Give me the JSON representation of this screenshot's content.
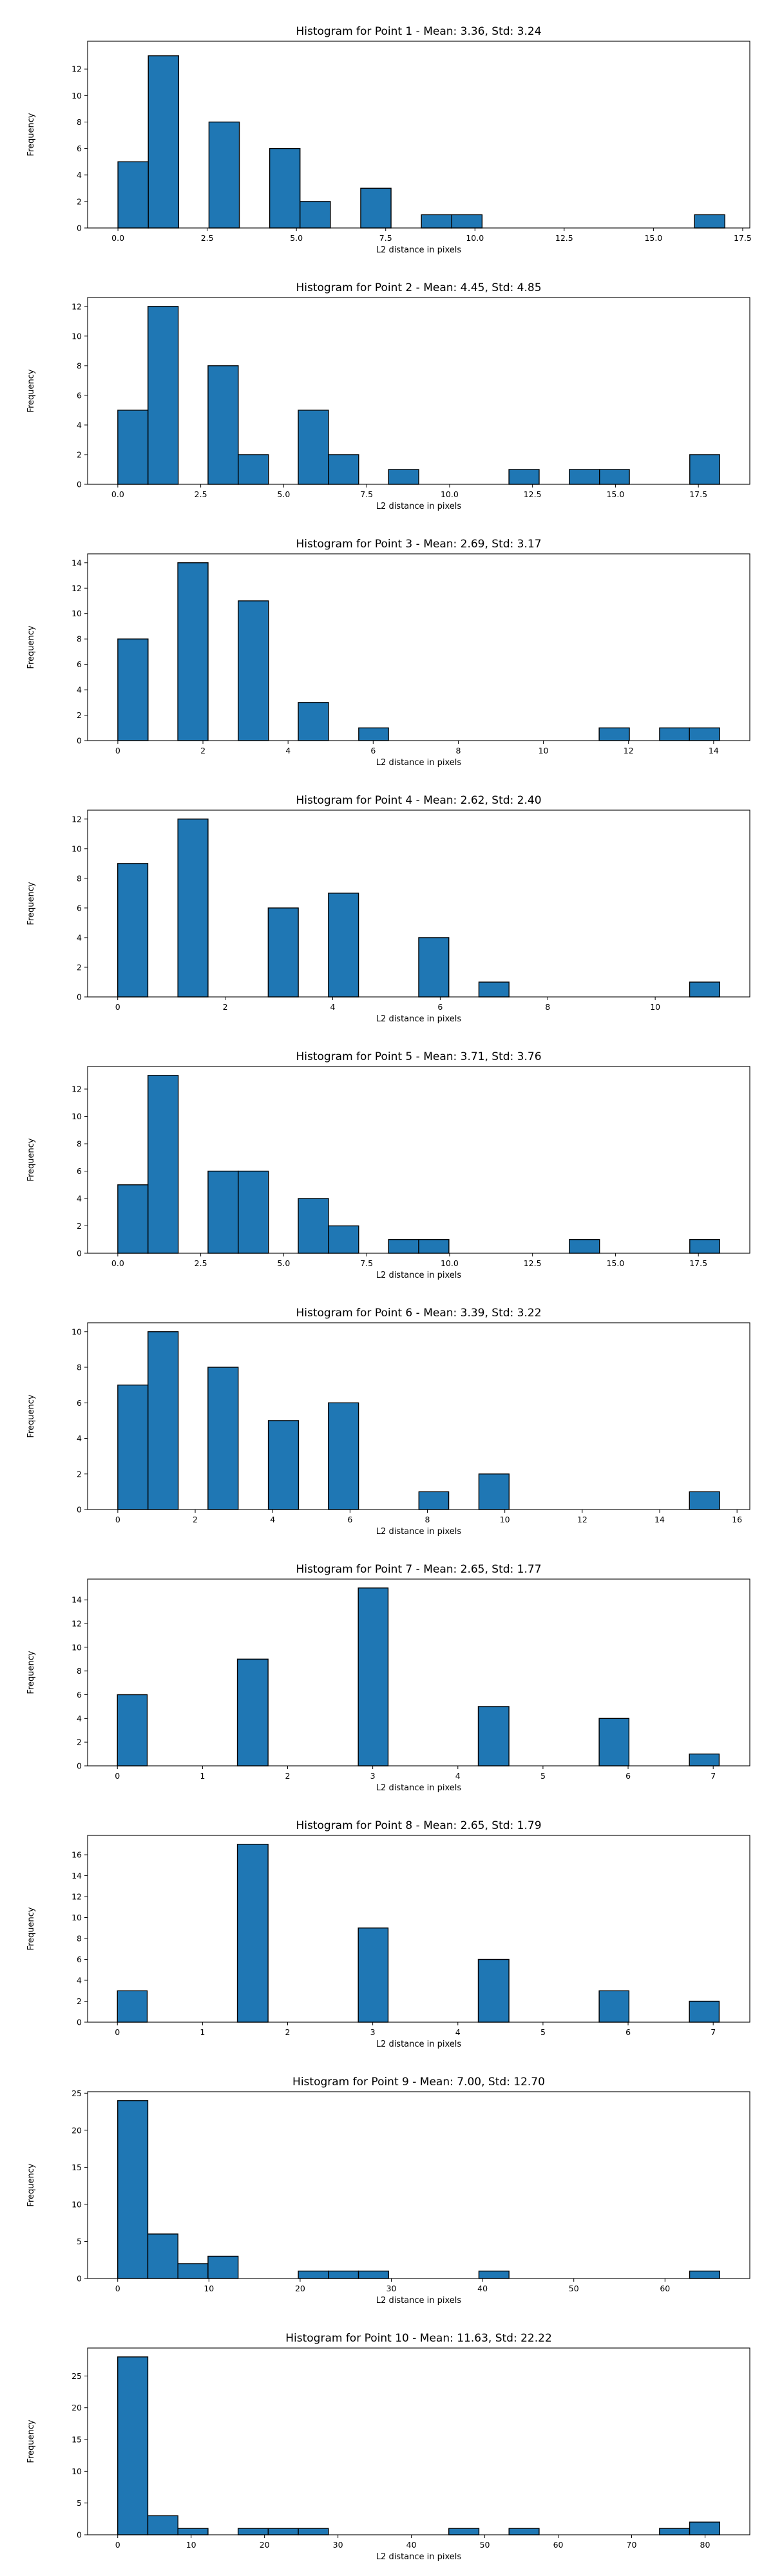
{
  "chart_data": [
    {
      "type": "bar",
      "title": "Histogram for Point 1 - Mean: 3.36, Std: 3.24",
      "xlabel": "L2 distance in pixels",
      "ylabel": "Frequency",
      "xlim": [
        -0.85,
        17.7
      ],
      "ylim": [
        0,
        14.1
      ],
      "xticks": [
        0,
        2.5,
        5,
        7.5,
        10,
        12.5,
        15,
        17.5
      ],
      "xtick_labels": [
        "0.0",
        "2.5",
        "5.0",
        "7.5",
        "10.0",
        "12.5",
        "15.0",
        "17.5"
      ],
      "yticks": [
        0,
        2,
        4,
        6,
        8,
        10,
        12
      ],
      "grid": false,
      "bins": [
        [
          0,
          0.85,
          5
        ],
        [
          0.85,
          1.7,
          13
        ],
        [
          2.55,
          3.4,
          8
        ],
        [
          4.25,
          5.1,
          6
        ],
        [
          5.1,
          5.95,
          2
        ],
        [
          6.8,
          7.65,
          3
        ],
        [
          8.5,
          9.35,
          1
        ],
        [
          9.35,
          10.2,
          1
        ],
        [
          16.15,
          17.0,
          1
        ]
      ]
    },
    {
      "type": "bar",
      "title": "Histogram for Point 2 - Mean: 4.45, Std: 4.85",
      "xlabel": "L2 distance in pixels",
      "ylabel": "Frequency",
      "xlim": [
        -0.91,
        19.05
      ],
      "ylim": [
        0,
        12.6
      ],
      "xticks": [
        0,
        2.5,
        5,
        7.5,
        10,
        12.5,
        15,
        17.5
      ],
      "xtick_labels": [
        "0.0",
        "2.5",
        "5.0",
        "7.5",
        "10.0",
        "12.5",
        "15.0",
        "17.5"
      ],
      "yticks": [
        0,
        2,
        4,
        6,
        8,
        10,
        12
      ],
      "grid": false,
      "bins": [
        [
          0,
          0.91,
          5
        ],
        [
          0.91,
          1.82,
          12
        ],
        [
          2.72,
          3.63,
          8
        ],
        [
          3.63,
          4.54,
          2
        ],
        [
          5.44,
          6.35,
          5
        ],
        [
          6.35,
          7.26,
          2
        ],
        [
          8.16,
          9.07,
          1
        ],
        [
          11.79,
          12.7,
          1
        ],
        [
          13.61,
          14.52,
          1
        ],
        [
          14.52,
          15.42,
          1
        ],
        [
          17.24,
          18.14,
          2
        ]
      ]
    },
    {
      "type": "bar",
      "title": "Histogram for Point 3 - Mean: 2.69, Std: 3.17",
      "xlabel": "L2 distance in pixels",
      "ylabel": "Frequency",
      "xlim": [
        -0.71,
        14.85
      ],
      "ylim": [
        0,
        14.7
      ],
      "xticks": [
        0,
        2,
        4,
        6,
        8,
        10,
        12,
        14
      ],
      "xtick_labels": [
        "0",
        "2",
        "4",
        "6",
        "8",
        "10",
        "12",
        "14"
      ],
      "yticks": [
        0,
        2,
        4,
        6,
        8,
        10,
        12,
        14
      ],
      "grid": false,
      "bins": [
        [
          0,
          0.71,
          8
        ],
        [
          1.41,
          2.12,
          14
        ],
        [
          2.83,
          3.54,
          11
        ],
        [
          4.24,
          4.95,
          3
        ],
        [
          5.66,
          6.36,
          1
        ],
        [
          11.31,
          12.02,
          1
        ],
        [
          12.73,
          13.43,
          1
        ],
        [
          13.43,
          14.14,
          1
        ]
      ]
    },
    {
      "type": "bar",
      "title": "Histogram for Point 4 - Mean: 2.62, Std: 2.40",
      "xlabel": "L2 distance in pixels",
      "ylabel": "Frequency",
      "xlim": [
        -0.56,
        11.76
      ],
      "ylim": [
        0,
        12.6
      ],
      "xticks": [
        0,
        2,
        4,
        6,
        8,
        10
      ],
      "xtick_labels": [
        "0",
        "2",
        "4",
        "6",
        "8",
        "10"
      ],
      "yticks": [
        0,
        2,
        4,
        6,
        8,
        10,
        12
      ],
      "grid": false,
      "bins": [
        [
          0,
          0.56,
          9
        ],
        [
          1.12,
          1.68,
          12
        ],
        [
          2.8,
          3.36,
          6
        ],
        [
          3.92,
          4.48,
          7
        ],
        [
          5.6,
          6.16,
          4
        ],
        [
          6.72,
          7.28,
          1
        ],
        [
          10.64,
          11.2,
          1
        ]
      ]
    },
    {
      "type": "bar",
      "title": "Histogram for Point 5 - Mean: 3.71, Std: 3.76",
      "xlabel": "L2 distance in pixels",
      "ylabel": "Frequency",
      "xlim": [
        -0.91,
        19.05
      ],
      "ylim": [
        0,
        13.65
      ],
      "xticks": [
        0,
        2.5,
        5,
        7.5,
        10,
        12.5,
        15,
        17.5
      ],
      "xtick_labels": [
        "0.0",
        "2.5",
        "5.0",
        "7.5",
        "10.0",
        "12.5",
        "15.0",
        "17.5"
      ],
      "yticks": [
        0,
        2,
        4,
        6,
        8,
        10,
        12
      ],
      "grid": false,
      "bins": [
        [
          0,
          0.91,
          5
        ],
        [
          0.91,
          1.82,
          13
        ],
        [
          2.72,
          3.63,
          6
        ],
        [
          3.63,
          4.54,
          6
        ],
        [
          5.44,
          6.35,
          4
        ],
        [
          6.35,
          7.26,
          2
        ],
        [
          8.16,
          9.07,
          1
        ],
        [
          9.07,
          9.98,
          1
        ],
        [
          13.61,
          14.52,
          1
        ],
        [
          17.24,
          18.14,
          1
        ]
      ]
    },
    {
      "type": "bar",
      "title": "Histogram for Point 6 - Mean: 3.39, Std: 3.22",
      "xlabel": "L2 distance in pixels",
      "ylabel": "Frequency",
      "xlim": [
        -0.78,
        16.33
      ],
      "ylim": [
        0,
        10.5
      ],
      "xticks": [
        0,
        2,
        4,
        6,
        8,
        10,
        12,
        14,
        16
      ],
      "xtick_labels": [
        "0",
        "2",
        "4",
        "6",
        "8",
        "10",
        "12",
        "14",
        "16"
      ],
      "yticks": [
        0,
        2,
        4,
        6,
        8,
        10
      ],
      "grid": false,
      "bins": [
        [
          0,
          0.78,
          7
        ],
        [
          0.78,
          1.56,
          10
        ],
        [
          2.33,
          3.11,
          8
        ],
        [
          3.89,
          4.67,
          5
        ],
        [
          5.44,
          6.22,
          6
        ],
        [
          7.78,
          8.55,
          1
        ],
        [
          9.33,
          10.11,
          2
        ],
        [
          14.77,
          15.55,
          1
        ]
      ]
    },
    {
      "type": "bar",
      "title": "Histogram for Point 7 - Mean: 2.65, Std: 1.77",
      "xlabel": "L2 distance in pixels",
      "ylabel": "Frequency",
      "xlim": [
        -0.35,
        7.43
      ],
      "ylim": [
        0,
        15.75
      ],
      "xticks": [
        0,
        1,
        2,
        3,
        4,
        5,
        6,
        7
      ],
      "xtick_labels": [
        "0",
        "1",
        "2",
        "3",
        "4",
        "5",
        "6",
        "7"
      ],
      "yticks": [
        0,
        2,
        4,
        6,
        8,
        10,
        12,
        14
      ],
      "grid": false,
      "bins": [
        [
          0,
          0.35,
          6
        ],
        [
          1.41,
          1.77,
          9
        ],
        [
          2.83,
          3.18,
          15
        ],
        [
          4.24,
          4.6,
          5
        ],
        [
          5.66,
          6.01,
          4
        ],
        [
          6.72,
          7.07,
          1
        ]
      ]
    },
    {
      "type": "bar",
      "title": "Histogram for Point 8 - Mean: 2.65, Std: 1.79",
      "xlabel": "L2 distance in pixels",
      "ylabel": "Frequency",
      "xlim": [
        -0.35,
        7.43
      ],
      "ylim": [
        0,
        17.85
      ],
      "xticks": [
        0,
        1,
        2,
        3,
        4,
        5,
        6,
        7
      ],
      "xtick_labels": [
        "0",
        "1",
        "2",
        "3",
        "4",
        "5",
        "6",
        "7"
      ],
      "yticks": [
        0,
        2,
        4,
        6,
        8,
        10,
        12,
        14,
        16
      ],
      "grid": false,
      "bins": [
        [
          0,
          0.35,
          3
        ],
        [
          1.41,
          1.77,
          17
        ],
        [
          2.83,
          3.18,
          9
        ],
        [
          4.24,
          4.6,
          6
        ],
        [
          5.66,
          6.01,
          3
        ],
        [
          6.72,
          7.07,
          2
        ]
      ]
    },
    {
      "type": "bar",
      "title": "Histogram for Point 9 - Mean: 7.00, Std: 12.70",
      "xlabel": "L2 distance in pixels",
      "ylabel": "Frequency",
      "xlim": [
        -3.3,
        69.3
      ],
      "ylim": [
        0,
        25.2
      ],
      "xticks": [
        0,
        10,
        20,
        30,
        40,
        50,
        60
      ],
      "xtick_labels": [
        "0",
        "10",
        "20",
        "30",
        "40",
        "50",
        "60"
      ],
      "yticks": [
        0,
        5,
        10,
        15,
        20,
        25
      ],
      "grid": false,
      "bins": [
        [
          0,
          3.3,
          24
        ],
        [
          3.3,
          6.6,
          6
        ],
        [
          6.6,
          9.9,
          2
        ],
        [
          9.9,
          13.2,
          3
        ],
        [
          19.8,
          23.1,
          1
        ],
        [
          23.1,
          26.4,
          1
        ],
        [
          26.4,
          29.7,
          1
        ],
        [
          39.6,
          42.9,
          1
        ],
        [
          62.7,
          66.0,
          1
        ]
      ]
    },
    {
      "type": "bar",
      "title": "Histogram for Point 10 - Mean: 11.63, Std: 22.22",
      "xlabel": "L2 distance in pixels",
      "ylabel": "Frequency",
      "xlim": [
        -4.1,
        86.1
      ],
      "ylim": [
        0,
        29.4
      ],
      "xticks": [
        0,
        10,
        20,
        30,
        40,
        50,
        60,
        70,
        80
      ],
      "xtick_labels": [
        "0",
        "10",
        "20",
        "30",
        "40",
        "50",
        "60",
        "70",
        "80"
      ],
      "yticks": [
        0,
        5,
        10,
        15,
        20,
        25
      ],
      "grid": false,
      "bins": [
        [
          0,
          4.1,
          28
        ],
        [
          4.1,
          8.2,
          3
        ],
        [
          8.2,
          12.3,
          1
        ],
        [
          16.4,
          20.5,
          1
        ],
        [
          20.5,
          24.6,
          1
        ],
        [
          24.6,
          28.7,
          1
        ],
        [
          45.1,
          49.2,
          1
        ],
        [
          53.3,
          57.4,
          1
        ],
        [
          73.8,
          77.9,
          1
        ],
        [
          77.9,
          82.0,
          2
        ]
      ]
    }
  ],
  "colors": {
    "bar_fill": "#1f77b4",
    "bar_edge": "#000000"
  }
}
